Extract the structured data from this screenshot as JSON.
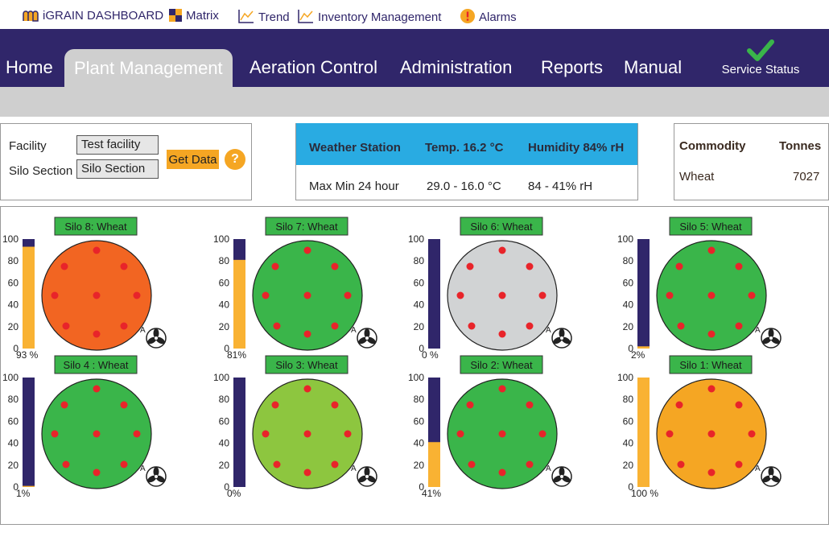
{
  "nav": {
    "tabs": [
      {
        "label": "Home",
        "active": false
      },
      {
        "label": "Plant Management",
        "active": true
      },
      {
        "label": "Aeration Control",
        "active": false
      },
      {
        "label": "Administration",
        "active": false
      },
      {
        "label": "Reports",
        "active": false
      },
      {
        "label": "Manual",
        "active": false
      }
    ],
    "service_status": {
      "label": "Service Status",
      "icon": "checkmark-icon",
      "color": "#3ab54a"
    }
  },
  "subnav": {
    "items": [
      {
        "label": "iGRAIN DASHBOARD",
        "icon": "silo-building-icon"
      },
      {
        "label": "Matrix",
        "icon": "matrix-grid-icon"
      },
      {
        "label": "Trend",
        "icon": "trend-chart-icon"
      },
      {
        "label": "Inventory Management",
        "icon": "inventory-chart-icon"
      },
      {
        "label": "Alarms",
        "icon": "alarm-exclamation-icon"
      }
    ]
  },
  "filter": {
    "facility_label": "Facility",
    "facility_value": "Test facility",
    "section_label": "Silo Section",
    "section_value": "Silo Section",
    "get_data_label": "Get Data",
    "help_label": "?"
  },
  "weather": {
    "station_label": "Weather Station",
    "temp_label": "Temp. 16.2 °C",
    "humidity_label": "Humidity 84% rH",
    "maxmin_label": "Max Min 24 hour",
    "temp_range": "29.0 - 16.0 °C",
    "humidity_range": "84 - 41% rH"
  },
  "commodity": {
    "header_commodity": "Commodity",
    "header_tonnes": "Tonnes",
    "rows": [
      {
        "name": "Wheat",
        "tonnes": "7027"
      }
    ]
  },
  "colors": {
    "fill_orange": "#f9b233",
    "bar_empty": "#30266a",
    "sensor": "#e8242a",
    "label_green": "#3ab54a"
  },
  "silos": [
    {
      "label": "Silo 8: Wheat",
      "level": 93,
      "level_label": "93 %",
      "color": "#f26522",
      "fan_label": "A"
    },
    {
      "label": "Silo 7: Wheat",
      "level": 81,
      "level_label": "81%",
      "color": "#3ab54a",
      "fan_label": "A"
    },
    {
      "label": "Silo 6: Wheat",
      "level": 0,
      "level_label": "0 %",
      "color": "#d1d3d4",
      "fan_label": "A"
    },
    {
      "label": "Silo 5: Wheat",
      "level": 2,
      "level_label": "2%",
      "color": "#3ab54a",
      "fan_label": "A"
    },
    {
      "label": "Silo 4 : Wheat",
      "level": 1,
      "level_label": "1%",
      "color": "#3ab54a",
      "fan_label": "A"
    },
    {
      "label": "Silo 3: Wheat",
      "level": 0,
      "level_label": "0%",
      "color": "#8dc63f",
      "fan_label": "A"
    },
    {
      "label": "Silo 2: Wheat",
      "level": 41,
      "level_label": "41%",
      "color": "#3ab54a",
      "fan_label": "A"
    },
    {
      "label": "Silo 1: Wheat",
      "level": 100,
      "level_label": "100 %",
      "color": "#f5a623",
      "fan_label": "A"
    }
  ],
  "level_axis_ticks": [
    "100",
    "80",
    "60",
    "40",
    "20",
    "0"
  ]
}
